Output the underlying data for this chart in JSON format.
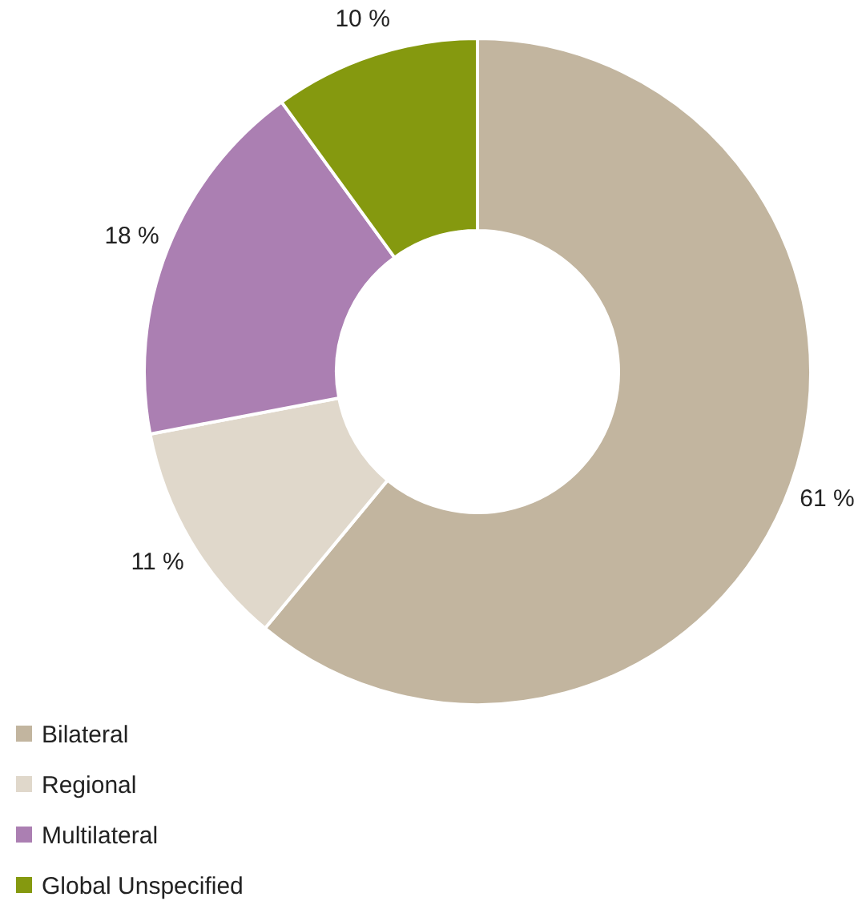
{
  "chart_data": {
    "type": "donut",
    "categories": [
      "Bilateral",
      "Regional",
      "Multilateral",
      "Global Unspecified"
    ],
    "values": [
      61,
      11,
      18,
      10
    ],
    "colors": [
      "#c2b59f",
      "#e0d8cb",
      "#ab7fb2",
      "#85990f"
    ],
    "value_labels": [
      "61 %",
      "11 %",
      "18 %",
      "10 %"
    ],
    "legend": "bottom left"
  }
}
